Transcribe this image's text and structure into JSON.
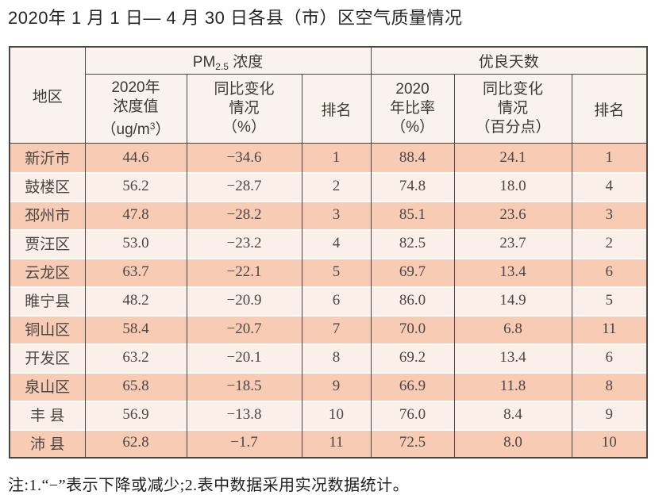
{
  "title": "2020年 1 月 1 日— 4 月 30 日各县（市）区空气质量情况",
  "colors": {
    "border": "#4a4645",
    "header_bg": "#faf3ec",
    "row_odd": "#f8cbb4",
    "row_even": "#fbf0e9",
    "text": "#4c4744"
  },
  "table": {
    "header": {
      "region": "地区",
      "pm_group": {
        "prefix": "PM",
        "sub": "2.5",
        "suffix": " 浓度"
      },
      "good_group": "优良天数",
      "pm_value": {
        "line1": "2020年",
        "line2": "浓度值",
        "line3_prefix": "（ug/m",
        "line3_sup": "3",
        "line3_suffix": "）"
      },
      "pm_change": {
        "line1": "同比变化",
        "line2": "情况",
        "line3": "（%）"
      },
      "pm_rank": "排名",
      "good_ratio": {
        "line1": "2020",
        "line2": "年比率",
        "line3": "（%）"
      },
      "good_change": {
        "line1": "同比变化",
        "line2": "情况",
        "line3": "（百分点）"
      },
      "good_rank": "排名"
    },
    "rows": [
      {
        "region": "新沂市",
        "pm2020": "44.6",
        "pm_change": "−34.6",
        "pm_rank": "1",
        "ratio2020": "88.4",
        "ratio_change": "24.1",
        "ratio_rank": "1"
      },
      {
        "region": "鼓楼区",
        "pm2020": "56.2",
        "pm_change": "−28.7",
        "pm_rank": "2",
        "ratio2020": "74.8",
        "ratio_change": "18.0",
        "ratio_rank": "4"
      },
      {
        "region": "邳州市",
        "pm2020": "47.8",
        "pm_change": "−28.2",
        "pm_rank": "3",
        "ratio2020": "85.1",
        "ratio_change": "23.6",
        "ratio_rank": "3"
      },
      {
        "region": "贾汪区",
        "pm2020": "53.0",
        "pm_change": "−23.2",
        "pm_rank": "4",
        "ratio2020": "82.5",
        "ratio_change": "23.7",
        "ratio_rank": "2"
      },
      {
        "region": "云龙区",
        "pm2020": "63.7",
        "pm_change": "−22.1",
        "pm_rank": "5",
        "ratio2020": "69.7",
        "ratio_change": "13.4",
        "ratio_rank": "6"
      },
      {
        "region": "睢宁县",
        "pm2020": "48.2",
        "pm_change": "−20.9",
        "pm_rank": "6",
        "ratio2020": "86.0",
        "ratio_change": "14.9",
        "ratio_rank": "5"
      },
      {
        "region": "铜山区",
        "pm2020": "58.4",
        "pm_change": "−20.7",
        "pm_rank": "7",
        "ratio2020": "70.0",
        "ratio_change": "6.8",
        "ratio_rank": "11"
      },
      {
        "region": "开发区",
        "pm2020": "63.2",
        "pm_change": "−20.1",
        "pm_rank": "8",
        "ratio2020": "69.2",
        "ratio_change": "13.4",
        "ratio_rank": "6"
      },
      {
        "region": "泉山区",
        "pm2020": "65.8",
        "pm_change": "−18.5",
        "pm_rank": "9",
        "ratio2020": "66.9",
        "ratio_change": "11.8",
        "ratio_rank": "8"
      },
      {
        "region": "丰 县",
        "pm2020": "56.9",
        "pm_change": "−13.8",
        "pm_rank": "10",
        "ratio2020": "76.0",
        "ratio_change": "8.4",
        "ratio_rank": "9"
      },
      {
        "region": "沛 县",
        "pm2020": "62.8",
        "pm_change": "−1.7",
        "pm_rank": "11",
        "ratio2020": "72.5",
        "ratio_change": "8.0",
        "ratio_rank": "10"
      }
    ]
  },
  "footnote": "注:1.“−”表示下降或减少;2.表中数据采用实况数据统计。"
}
